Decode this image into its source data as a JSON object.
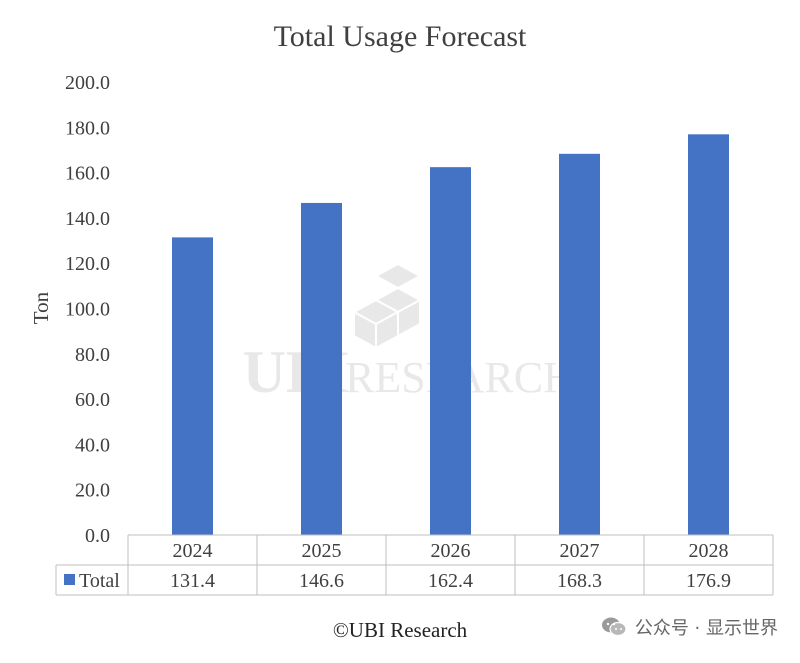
{
  "chart_data": {
    "type": "bar",
    "title": "Total Usage Forecast",
    "ylabel": "Ton",
    "xlabel": "",
    "categories": [
      "2024",
      "2025",
      "2026",
      "2027",
      "2028"
    ],
    "series": [
      {
        "name": "Total",
        "values": [
          131.4,
          146.6,
          162.4,
          168.3,
          176.9
        ],
        "labels": [
          "131.4",
          "146.6",
          "162.4",
          "168.3",
          "176.9"
        ],
        "color": "#4472C4"
      }
    ],
    "ylim": [
      0,
      200
    ],
    "yticks": [
      "0.0",
      "20.0",
      "40.0",
      "60.0",
      "80.0",
      "100.0",
      "120.0",
      "140.0",
      "160.0",
      "180.0",
      "200.0"
    ],
    "grid": false,
    "legend": "data-table-left"
  },
  "watermark": {
    "text": "RESEARCH",
    "logo_text": "UBI"
  },
  "caption": "©UBI Research",
  "wechat": {
    "icon": "wechat-icon",
    "label": "公众号 · 显示世界"
  }
}
